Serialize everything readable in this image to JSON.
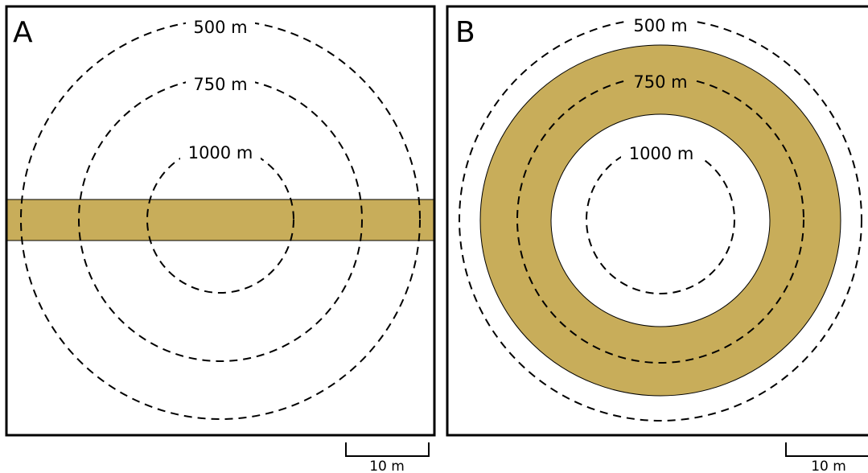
{
  "colors": {
    "band": "#c8ad5a",
    "line": "#000000",
    "background": "#ffffff"
  },
  "panels": [
    {
      "letter": "A",
      "contours": [
        {
          "label": "500 m"
        },
        {
          "label": "750 m"
        },
        {
          "label": "1000 m"
        }
      ],
      "band_shape": "horizontal-strip",
      "scale_bar": {
        "label": "10 m"
      }
    },
    {
      "letter": "B",
      "contours": [
        {
          "label": "500 m"
        },
        {
          "label": "750 m"
        },
        {
          "label": "1000 m"
        }
      ],
      "band_shape": "ring",
      "scale_bar": {
        "label": "10 m"
      }
    }
  ]
}
